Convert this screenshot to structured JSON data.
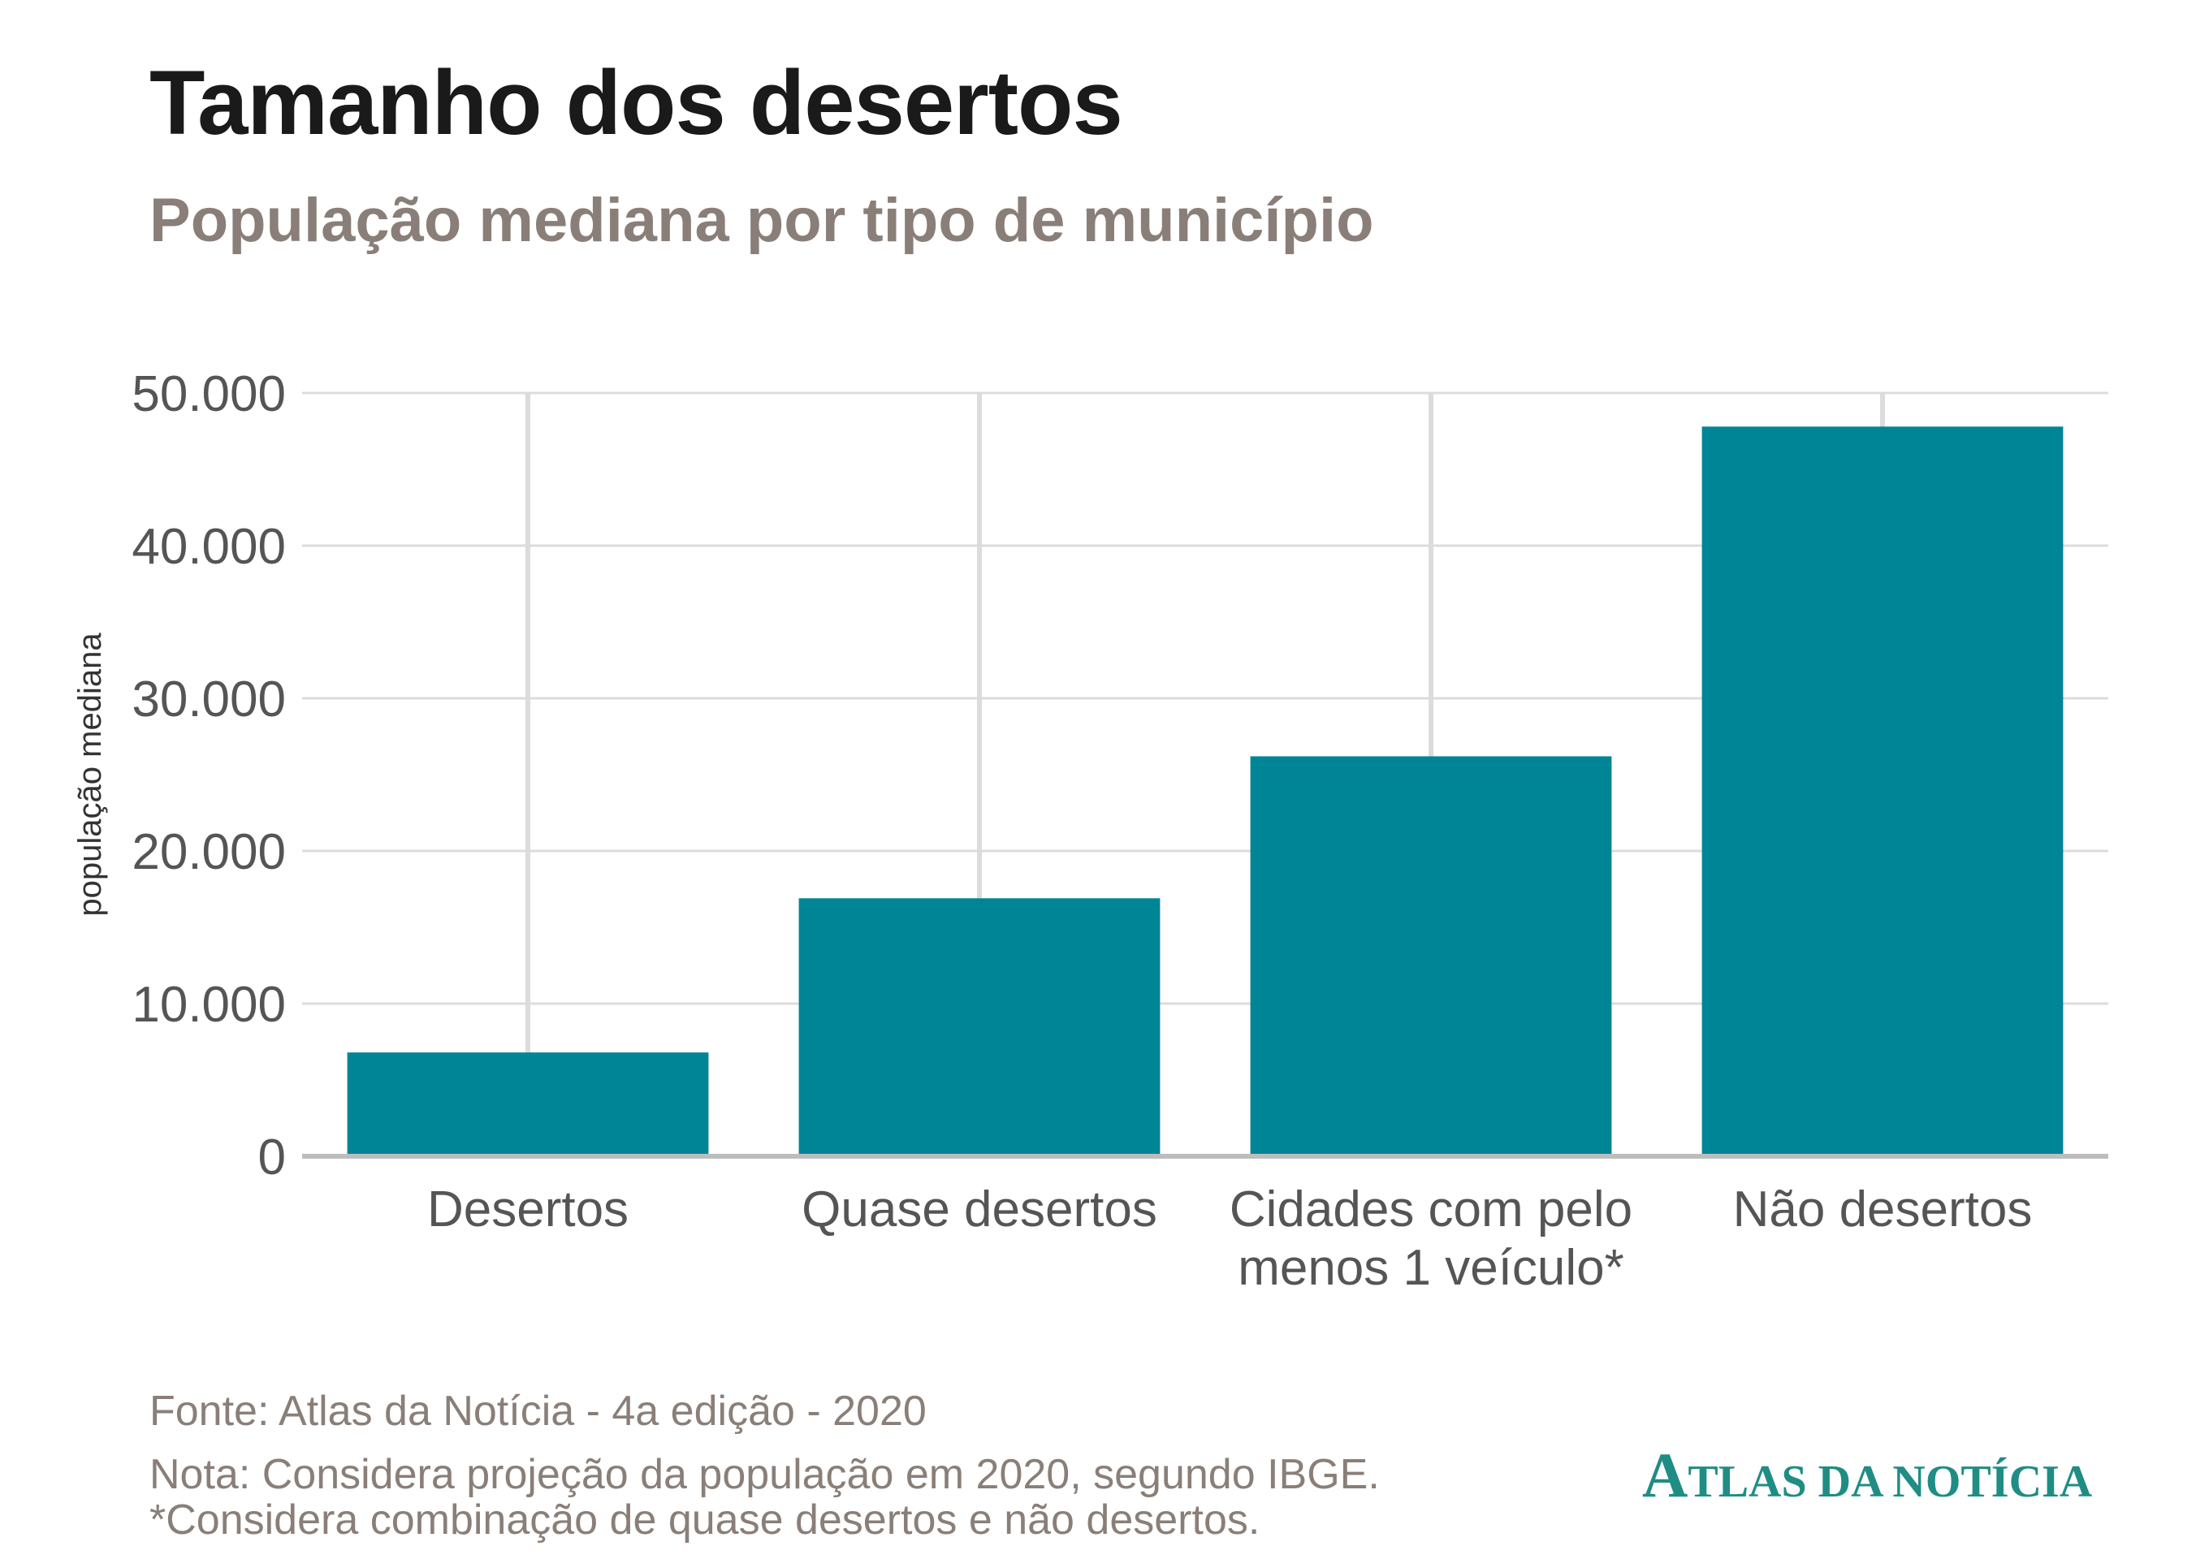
{
  "chart_data": {
    "type": "bar",
    "title": "Tamanho dos desertos",
    "subtitle": "População mediana por tipo de município",
    "ylabel": "população mediana",
    "xlabel": "",
    "categories": [
      [
        "Desertos"
      ],
      [
        "Quase desertos"
      ],
      [
        "Cidades com pelo",
        "menos 1 veículo*"
      ],
      [
        "Não desertos"
      ]
    ],
    "values": [
      6800,
      16900,
      26200,
      47800
    ],
    "ylim": [
      0,
      50000
    ],
    "yticks": [
      0,
      10000,
      20000,
      30000,
      40000,
      50000
    ],
    "ytick_labels": [
      "0",
      "10.000",
      "20.000",
      "30.000",
      "40.000",
      "50.000"
    ],
    "grid": true,
    "legend": "none",
    "colors": {
      "bar": "#008596",
      "grid": "#dcdcdc",
      "axis": "#bdbdbd",
      "tick_text": "#555555"
    }
  },
  "footer": {
    "source": "Fonte: Atlas da Notícia - 4a edição - 2020",
    "note": "Nota: Considera projeção da população em 2020, segundo IBGE.",
    "note2": "*Considera combinação de quase desertos e não desertos."
  },
  "logo": {
    "initial": "A",
    "rest": "TLAS DA NOTÍCIA"
  }
}
